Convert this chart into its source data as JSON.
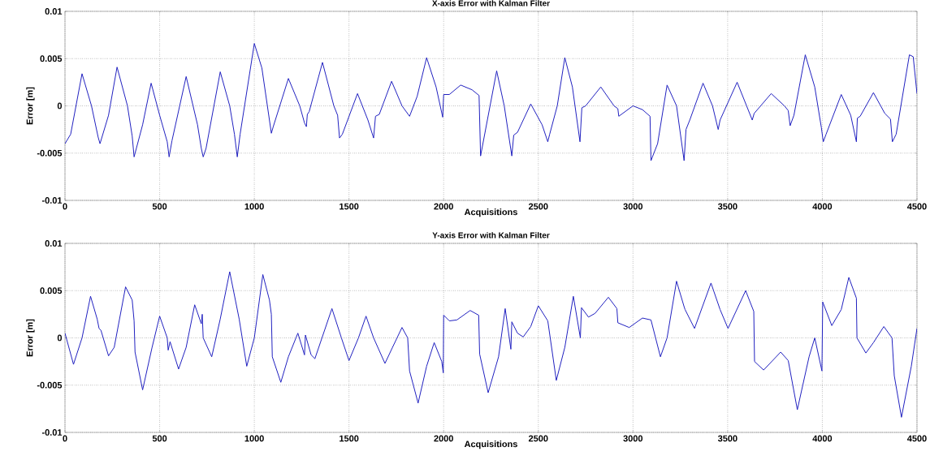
{
  "chart_data": [
    {
      "type": "line",
      "title": "X-axis Error with Kalman Filter",
      "xlabel": "Acquisitions",
      "ylabel": "Error [m]",
      "xlim": [
        0,
        4500
      ],
      "ylim": [
        -0.01,
        0.01
      ],
      "xticks": [
        0,
        500,
        1000,
        1500,
        2000,
        2500,
        3000,
        3500,
        4000,
        4500
      ],
      "yticks": [
        -0.01,
        -0.005,
        0,
        0.005,
        0.01
      ],
      "grid": true,
      "marker": "none",
      "x": [
        0,
        30,
        90,
        140,
        175,
        185,
        230,
        275,
        330,
        355,
        365,
        410,
        455,
        500,
        540,
        550,
        565,
        640,
        700,
        720,
        730,
        745,
        820,
        870,
        895,
        910,
        925,
        1000,
        1040,
        1090,
        1100,
        1180,
        1240,
        1265,
        1275,
        1280,
        1290,
        1360,
        1420,
        1440,
        1450,
        1465,
        1545,
        1600,
        1630,
        1640,
        1660,
        1725,
        1780,
        1820,
        1860,
        1910,
        1960,
        1995,
        2000,
        2030,
        2090,
        2150,
        2187,
        2195,
        2280,
        2320,
        2360,
        2370,
        2390,
        2460,
        2520,
        2550,
        2560,
        2600,
        2640,
        2680,
        2720,
        2730,
        2750,
        2830,
        2900,
        2920,
        2925,
        3000,
        3050,
        3090,
        3095,
        3130,
        3180,
        3230,
        3270,
        3280,
        3300,
        3370,
        3420,
        3450,
        3460,
        3550,
        3600,
        3630,
        3640,
        3730,
        3800,
        3820,
        3830,
        3850,
        3910,
        3960,
        3995,
        4005,
        4020,
        4100,
        4150,
        4180,
        4185,
        4200,
        4270,
        4330,
        4360,
        4370,
        4390,
        4460,
        4480,
        4500
      ],
      "series": [
        {
          "color": "#2020c0",
          "values": [
            -0.004,
            -0.003,
            0.0034,
            0.0,
            -0.0033,
            -0.004,
            -0.001,
            0.0041,
            0.0,
            -0.0032,
            -0.0054,
            -0.002,
            0.0024,
            -0.001,
            -0.0038,
            -0.0054,
            -0.0037,
            0.0031,
            -0.002,
            -0.0045,
            -0.0054,
            -0.0045,
            0.0036,
            0.0,
            -0.003,
            -0.0054,
            -0.003,
            0.0066,
            0.004,
            -0.0029,
            -0.0022,
            0.0029,
            0.0,
            -0.0018,
            -0.0022,
            -0.0009,
            -0.0006,
            0.0046,
            0.0,
            -0.001,
            -0.0034,
            -0.003,
            0.0013,
            -0.0015,
            -0.0034,
            -0.0011,
            -0.0009,
            0.0026,
            0.0,
            -0.0011,
            0.001,
            0.0051,
            0.002,
            -0.0012,
            0.0012,
            0.0012,
            0.0022,
            0.0017,
            0.0011,
            -0.0053,
            0.0037,
            0.0,
            -0.0053,
            -0.0031,
            -0.0028,
            0.0002,
            -0.002,
            -0.0038,
            -0.003,
            0.0,
            0.0051,
            0.002,
            -0.0038,
            -0.0002,
            0.0,
            0.002,
            0.0,
            -0.0003,
            -0.0011,
            0.0,
            -0.0004,
            -0.0011,
            -0.0058,
            -0.004,
            0.0022,
            0.0,
            -0.0058,
            -0.0025,
            -0.0015,
            0.0024,
            0.0,
            -0.0025,
            -0.0015,
            0.0025,
            0.0,
            -0.0015,
            -0.0008,
            0.0013,
            0.0,
            -0.0005,
            -0.0021,
            -0.001,
            0.0054,
            0.002,
            -0.0023,
            -0.0038,
            -0.003,
            0.0012,
            -0.001,
            -0.0038,
            -0.0013,
            -0.0011,
            0.0014,
            -0.0008,
            -0.0014,
            -0.0038,
            -0.003,
            0.0054,
            0.0052,
            0.0013
          ]
        }
      ]
    },
    {
      "type": "line",
      "title": "Y-axis Error with Kalman Filter",
      "xlabel": "Acquisitions",
      "ylabel": "Error [m]",
      "xlim": [
        0,
        4500
      ],
      "ylim": [
        -0.01,
        0.01
      ],
      "xticks": [
        0,
        500,
        1000,
        1500,
        2000,
        2500,
        3000,
        3500,
        4000,
        4500
      ],
      "yticks": [
        -0.01,
        -0.005,
        0,
        0.005,
        0.01
      ],
      "grid": true,
      "marker": "none",
      "x": [
        0,
        45,
        90,
        135,
        170,
        180,
        190,
        230,
        260,
        320,
        355,
        365,
        370,
        410,
        460,
        500,
        540,
        545,
        555,
        600,
        640,
        685,
        720,
        725,
        730,
        775,
        820,
        870,
        920,
        960,
        1000,
        1045,
        1080,
        1090,
        1095,
        1140,
        1180,
        1230,
        1265,
        1270,
        1300,
        1320,
        1410,
        1460,
        1500,
        1550,
        1590,
        1630,
        1690,
        1730,
        1780,
        1810,
        1820,
        1865,
        1910,
        1950,
        1990,
        1998,
        2000,
        2030,
        2070,
        2140,
        2185,
        2190,
        2235,
        2290,
        2325,
        2355,
        2360,
        2390,
        2420,
        2460,
        2500,
        2550,
        2595,
        2640,
        2685,
        2722,
        2728,
        2765,
        2800,
        2870,
        2915,
        2920,
        2980,
        3050,
        3095,
        3145,
        3180,
        3230,
        3270,
        3275,
        3325,
        3412,
        3460,
        3502,
        3595,
        3638,
        3642,
        3690,
        3780,
        3820,
        3868,
        3930,
        3960,
        3998,
        4002,
        4050,
        4100,
        4140,
        4180,
        4183,
        4230,
        4270,
        4325,
        4368,
        4380,
        4418,
        4470,
        4500
      ],
      "series": [
        {
          "color": "#2020c0",
          "values": [
            0.0005,
            -0.0028,
            0.0,
            0.0044,
            0.002,
            0.001,
            0.0008,
            -0.0019,
            -0.001,
            0.0054,
            0.004,
            0.0018,
            -0.0015,
            -0.0055,
            -0.001,
            0.0023,
            0.0,
            -0.0013,
            -0.0004,
            -0.0033,
            -0.001,
            0.0035,
            0.0015,
            0.0025,
            0.0,
            -0.002,
            0.002,
            0.007,
            0.002,
            -0.003,
            0.0,
            0.0067,
            0.004,
            0.0025,
            -0.002,
            -0.0047,
            -0.002,
            0.0005,
            -0.0018,
            0.0003,
            -0.0018,
            -0.0022,
            0.0031,
            0.0,
            -0.0024,
            0.0,
            0.0023,
            0.0,
            -0.0027,
            -0.001,
            0.0011,
            0.0,
            -0.0035,
            -0.0069,
            -0.003,
            -0.0005,
            -0.0025,
            -0.0037,
            0.0024,
            0.0018,
            0.0019,
            0.0029,
            0.0024,
            -0.0017,
            -0.0058,
            -0.002,
            0.0031,
            -0.0012,
            0.0017,
            0.0005,
            0.0001,
            0.0012,
            0.0034,
            0.0018,
            -0.0045,
            -0.001,
            0.0044,
            0.0,
            0.0032,
            0.0022,
            0.0026,
            0.0043,
            0.0031,
            0.0016,
            0.0011,
            0.0021,
            0.0019,
            -0.002,
            0.0,
            0.006,
            0.0033,
            0.003,
            0.001,
            0.0058,
            0.003,
            0.001,
            0.005,
            0.0028,
            -0.0025,
            -0.0034,
            -0.0015,
            -0.0024,
            -0.0076,
            -0.002,
            0.0,
            -0.0035,
            0.0038,
            0.0013,
            0.003,
            0.0064,
            0.0042,
            0.0,
            -0.0016,
            -0.0005,
            0.0012,
            0.0,
            -0.004,
            -0.0084,
            -0.003,
            0.001
          ]
        }
      ]
    }
  ]
}
